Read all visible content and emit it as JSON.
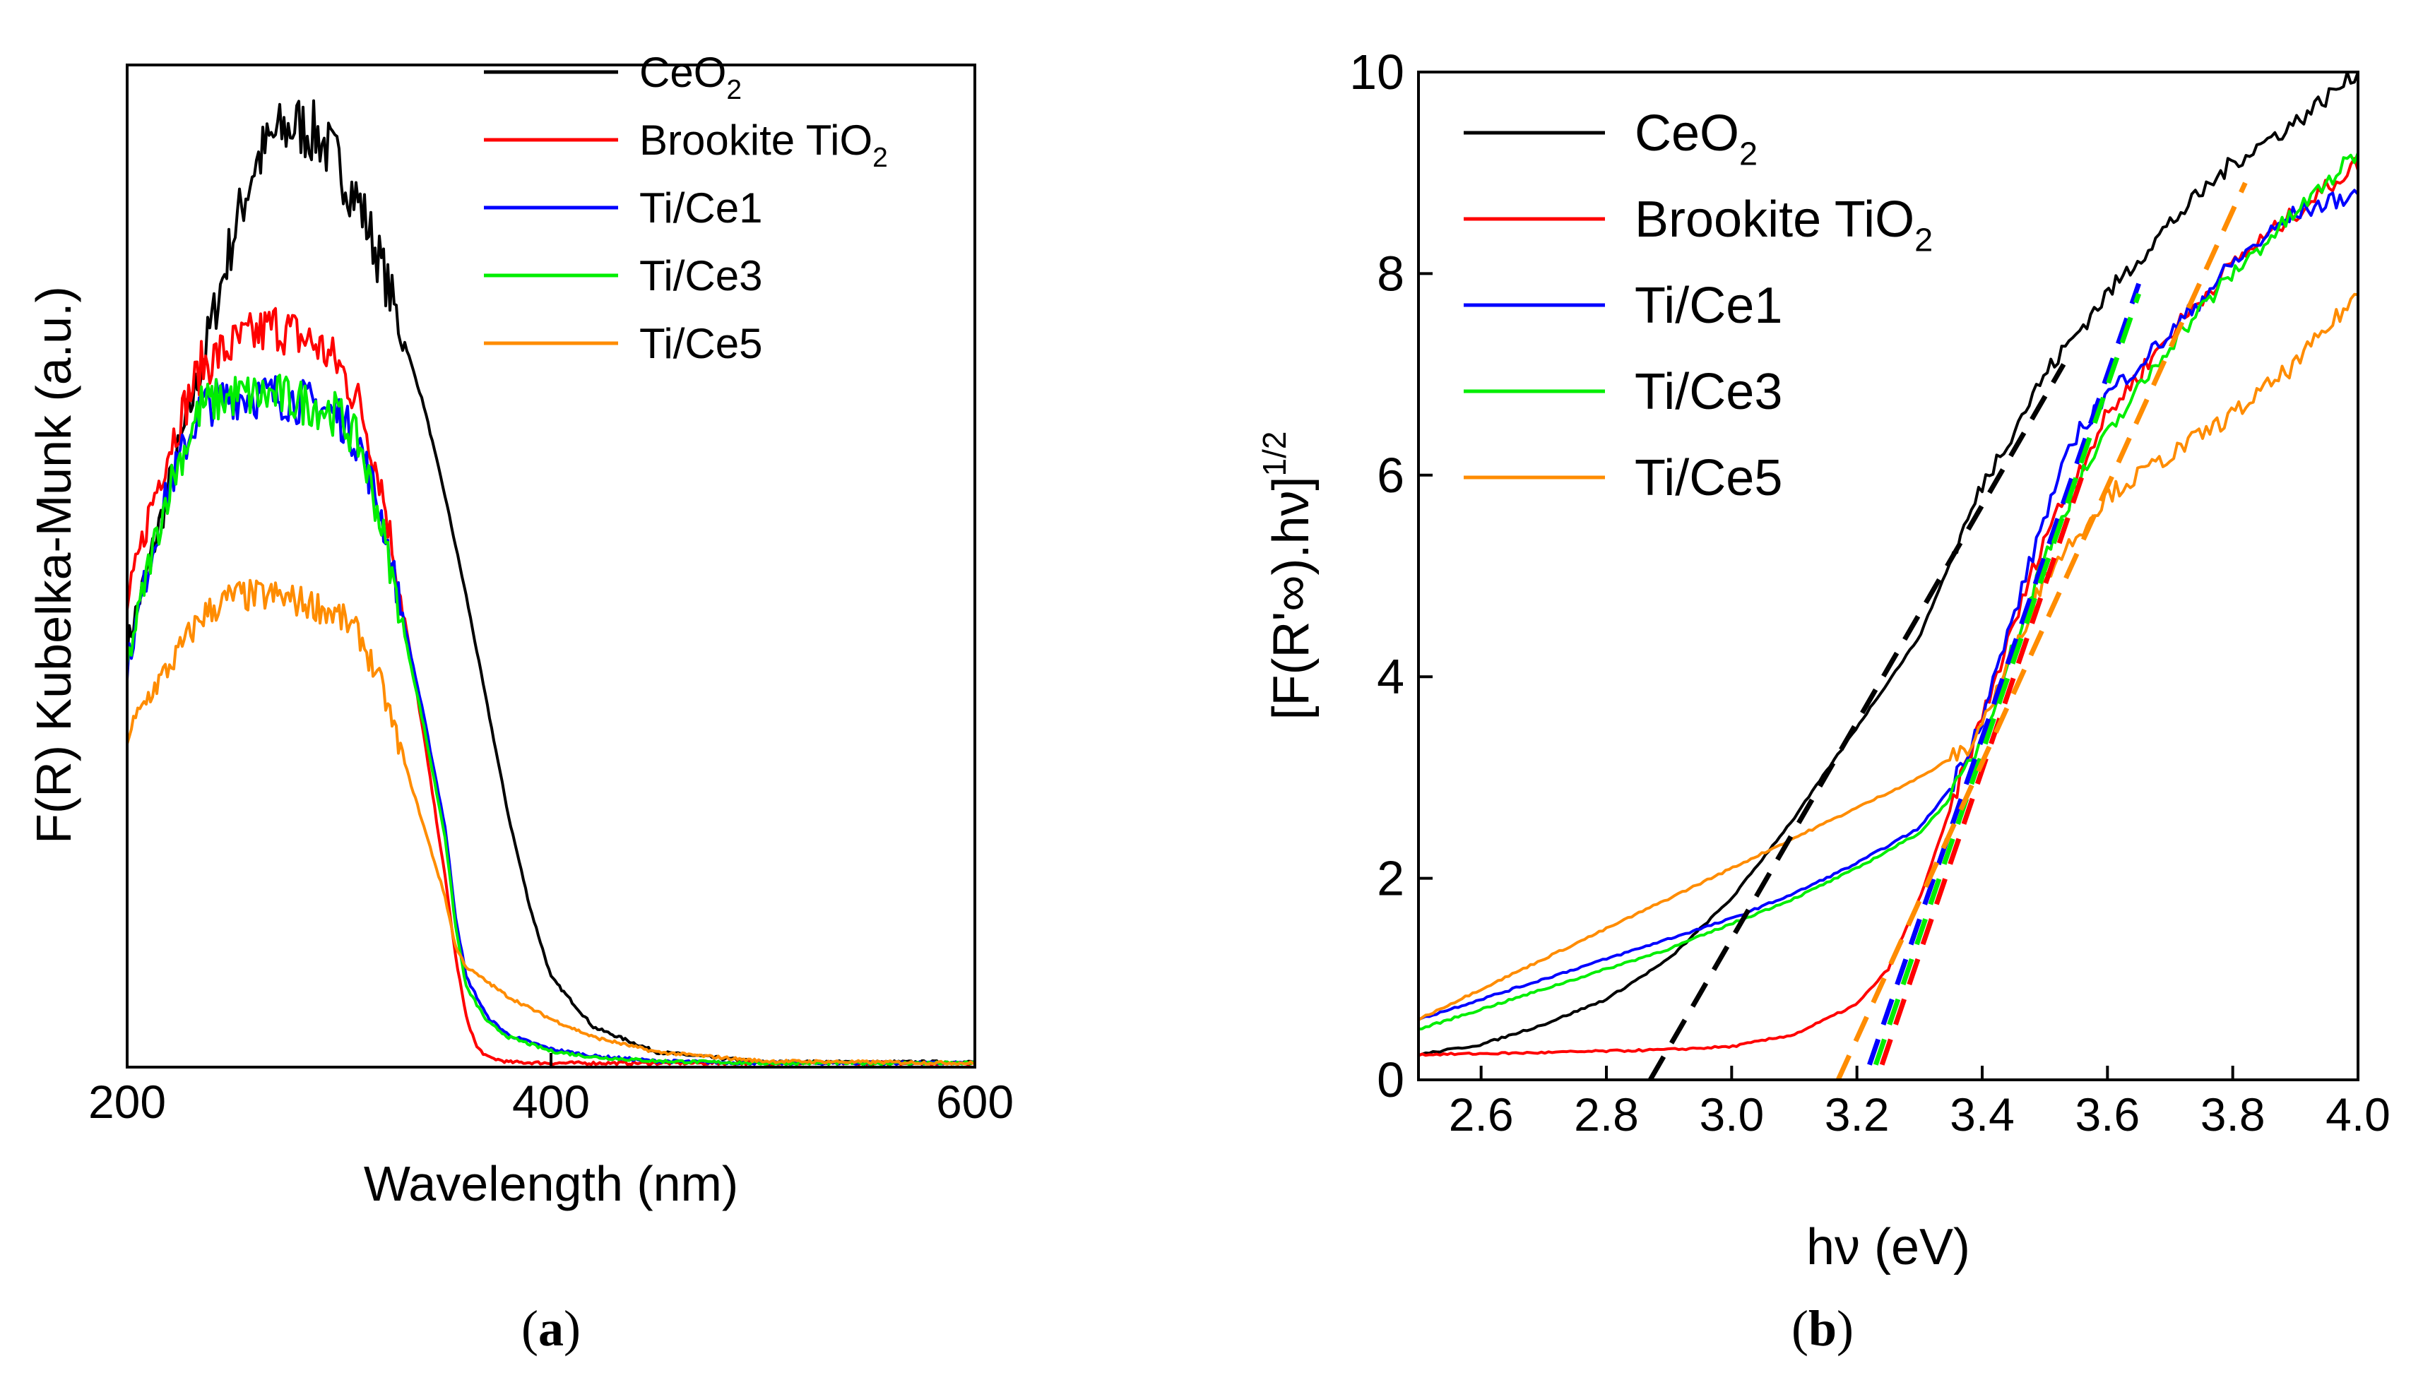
{
  "chart_data": [
    {
      "panel_label": "a",
      "type": "line",
      "title": "",
      "xlabel": "Wavelength (nm)",
      "ylabel": "F(R) Kubelka-Munk (a.u.)",
      "xlim": [
        200,
        600
      ],
      "ylim": [
        0,
        100
      ],
      "xticks": [
        200,
        400,
        600
      ],
      "yticks_shown": false,
      "legend_position": "top-right",
      "series": [
        {
          "name": "CeO",
          "subscript": "2",
          "color": "#000000",
          "x": [
            200,
            210,
            220,
            235,
            250,
            260,
            270,
            280,
            290,
            300,
            310,
            320,
            330,
            340,
            350,
            360,
            370,
            380,
            390,
            400,
            420,
            450,
            500,
            600
          ],
          "y": [
            42,
            50,
            58,
            70,
            83,
            90,
            93,
            94,
            93,
            90,
            86,
            80,
            73,
            66,
            57,
            47,
            36,
            25,
            16,
            9,
            4,
            1.5,
            0.5,
            0.5
          ]
        },
        {
          "name": "Brookite TiO",
          "subscript": "2",
          "color": "#ff0000",
          "x": [
            200,
            210,
            220,
            235,
            250,
            260,
            270,
            280,
            290,
            300,
            310,
            320,
            330,
            340,
            350,
            355,
            360,
            365,
            370,
            380,
            400,
            600
          ],
          "y": [
            46,
            55,
            62,
            70,
            72,
            73,
            74,
            73,
            72,
            70,
            66,
            58,
            46,
            33,
            19,
            11,
            5,
            2,
            1,
            0.5,
            0.4,
            0.4
          ]
        },
        {
          "name": "Ti/Ce1",
          "subscript": "",
          "color": "#0000ff",
          "x": [
            200,
            210,
            220,
            235,
            250,
            270,
            290,
            300,
            310,
            320,
            330,
            340,
            350,
            355,
            360,
            370,
            380,
            400,
            420,
            450,
            500,
            600
          ],
          "y": [
            40,
            50,
            58,
            66,
            67,
            67,
            66,
            65,
            62,
            55,
            45,
            35,
            24,
            15,
            9,
            5,
            3.2,
            1.8,
            1.1,
            0.6,
            0.4,
            0.4
          ]
        },
        {
          "name": "Ti/Ce3",
          "subscript": "",
          "color": "#00ee00",
          "x": [
            200,
            210,
            220,
            235,
            250,
            270,
            290,
            300,
            310,
            320,
            330,
            340,
            350,
            355,
            360,
            370,
            380,
            400,
            420,
            450,
            500,
            600
          ],
          "y": [
            40,
            50,
            58,
            66,
            67,
            67,
            66,
            65,
            62,
            54,
            44,
            34,
            23,
            14,
            8,
            4.5,
            3,
            1.6,
            1.0,
            0.6,
            0.4,
            0.4
          ]
        },
        {
          "name": "Ti/Ce5",
          "subscript": "",
          "color": "#ff8c00",
          "x": [
            200,
            210,
            220,
            235,
            250,
            270,
            290,
            300,
            310,
            320,
            330,
            340,
            350,
            355,
            360,
            370,
            380,
            400,
            420,
            450,
            500,
            600
          ],
          "y": [
            33,
            37,
            40,
            45,
            47,
            47,
            46,
            45,
            43,
            38,
            31,
            24,
            17,
            12,
            10,
            8.5,
            7,
            4.8,
            3,
            1.5,
            0.6,
            0.4
          ]
        }
      ],
      "caption": "(a)"
    },
    {
      "panel_label": "b",
      "type": "line",
      "title": "",
      "xlabel": "hν (eV)",
      "ylabel": "[F(R'∞).hν]",
      "ylabel_superscript": "1/2",
      "xlim": [
        2.5,
        4.0
      ],
      "ylim": [
        0,
        10
      ],
      "xticks": [
        2.6,
        2.8,
        3.0,
        3.2,
        3.4,
        3.6,
        3.8,
        4.0
      ],
      "xtick_labels": [
        "2.6",
        "2.8",
        "3.0",
        "3.2",
        "3.4",
        "3.6",
        "3.8",
        "4.0"
      ],
      "yticks": [
        0,
        2,
        4,
        6,
        8,
        10
      ],
      "legend_position": "top-left",
      "series": [
        {
          "name": "CeO",
          "subscript": "2",
          "color": "#000000",
          "x": [
            2.5,
            2.6,
            2.7,
            2.8,
            2.9,
            3.0,
            3.1,
            3.2,
            3.3,
            3.4,
            3.5,
            3.6,
            3.7,
            3.8,
            3.9,
            4.0
          ],
          "y": [
            0.25,
            0.35,
            0.55,
            0.8,
            1.2,
            1.8,
            2.6,
            3.5,
            4.4,
            5.9,
            7.0,
            7.8,
            8.5,
            9.1,
            9.5,
            10.0
          ],
          "tangent": {
            "x": [
              2.87,
              3.53
            ],
            "y": [
              0,
              7.1
            ]
          }
        },
        {
          "name": "Brookite TiO",
          "subscript": "2",
          "color": "#ff0000",
          "x": [
            2.5,
            2.7,
            2.9,
            3.0,
            3.1,
            3.2,
            3.25,
            3.3,
            3.35,
            3.4,
            3.45,
            3.5,
            3.6,
            3.7,
            3.8,
            3.9,
            4.0
          ],
          "y": [
            0.25,
            0.27,
            0.3,
            0.33,
            0.45,
            0.75,
            1.1,
            1.8,
            2.7,
            3.6,
            4.5,
            5.4,
            6.6,
            7.4,
            8.1,
            8.6,
            9.1
          ],
          "tangent": {
            "x": [
              3.24,
              3.56
            ],
            "y": [
              0.15,
              6.0
            ]
          }
        },
        {
          "name": "Ti/Ce1",
          "subscript": "",
          "color": "#0000ff",
          "x": [
            2.5,
            2.6,
            2.7,
            2.8,
            2.9,
            3.0,
            3.1,
            3.2,
            3.3,
            3.35,
            3.4,
            3.45,
            3.5,
            3.55,
            3.6,
            3.7,
            3.8,
            3.9,
            4.0
          ],
          "y": [
            0.6,
            0.8,
            1.0,
            1.2,
            1.4,
            1.6,
            1.85,
            2.15,
            2.5,
            2.9,
            3.6,
            4.6,
            5.6,
            6.4,
            6.8,
            7.4,
            8.1,
            8.6,
            8.8
          ],
          "tangent": {
            "x": [
              3.22,
              3.65
            ],
            "y": [
              0.15,
              7.9
            ]
          }
        },
        {
          "name": "Ti/Ce3",
          "subscript": "",
          "color": "#00ee00",
          "x": [
            2.5,
            2.6,
            2.7,
            2.8,
            2.9,
            3.0,
            3.1,
            3.2,
            3.3,
            3.35,
            3.4,
            3.45,
            3.5,
            3.55,
            3.6,
            3.7,
            3.8,
            3.9,
            4.0
          ],
          "y": [
            0.5,
            0.7,
            0.9,
            1.1,
            1.3,
            1.55,
            1.8,
            2.1,
            2.45,
            2.8,
            3.4,
            4.3,
            5.2,
            5.9,
            6.4,
            7.3,
            8.0,
            8.6,
            9.2
          ],
          "tangent": {
            "x": [
              3.23,
              3.65
            ],
            "y": [
              0.15,
              7.8
            ]
          }
        },
        {
          "name": "Ti/Ce5",
          "subscript": "",
          "color": "#ff8c00",
          "x": [
            2.5,
            2.6,
            2.7,
            2.8,
            2.9,
            3.0,
            3.1,
            3.2,
            3.3,
            3.38,
            3.42,
            3.5,
            3.6,
            3.7,
            3.8,
            3.9,
            4.0
          ],
          "y": [
            0.6,
            0.9,
            1.2,
            1.5,
            1.8,
            2.1,
            2.4,
            2.7,
            3.0,
            3.3,
            3.8,
            5.0,
            5.8,
            6.2,
            6.6,
            7.1,
            7.8
          ],
          "tangent": {
            "x": [
              3.17,
              3.82
            ],
            "y": [
              0,
              8.9
            ]
          }
        }
      ],
      "caption": "(b)"
    }
  ]
}
